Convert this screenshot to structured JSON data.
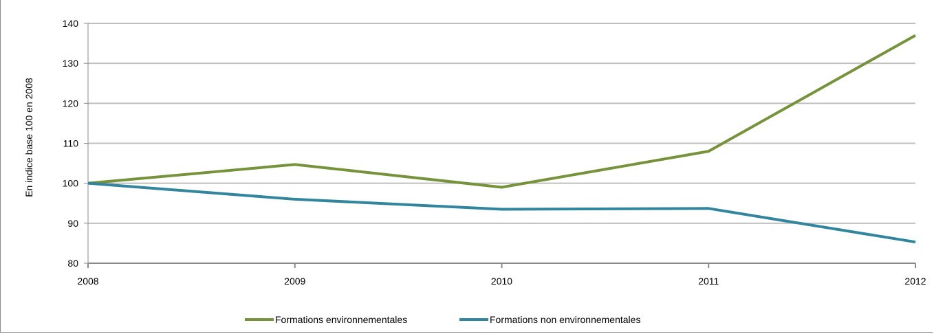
{
  "chart_data": {
    "type": "line",
    "categories": [
      "2008",
      "2009",
      "2010",
      "2011",
      "2012"
    ],
    "series": [
      {
        "name": "Formations environnementales",
        "values": [
          100,
          104.7,
          99,
          108,
          137
        ],
        "color": "#76933c"
      },
      {
        "name": "Formations non environnementales",
        "values": [
          100,
          96,
          93.5,
          93.7,
          85.3
        ],
        "color": "#31859c"
      }
    ],
    "title": "",
    "xlabel": "",
    "ylabel": "En indice base 100 en 2008",
    "ylim": [
      80,
      140
    ],
    "yticks": [
      80,
      90,
      100,
      110,
      120,
      130,
      140
    ],
    "grid": true,
    "legend_position": "bottom"
  }
}
